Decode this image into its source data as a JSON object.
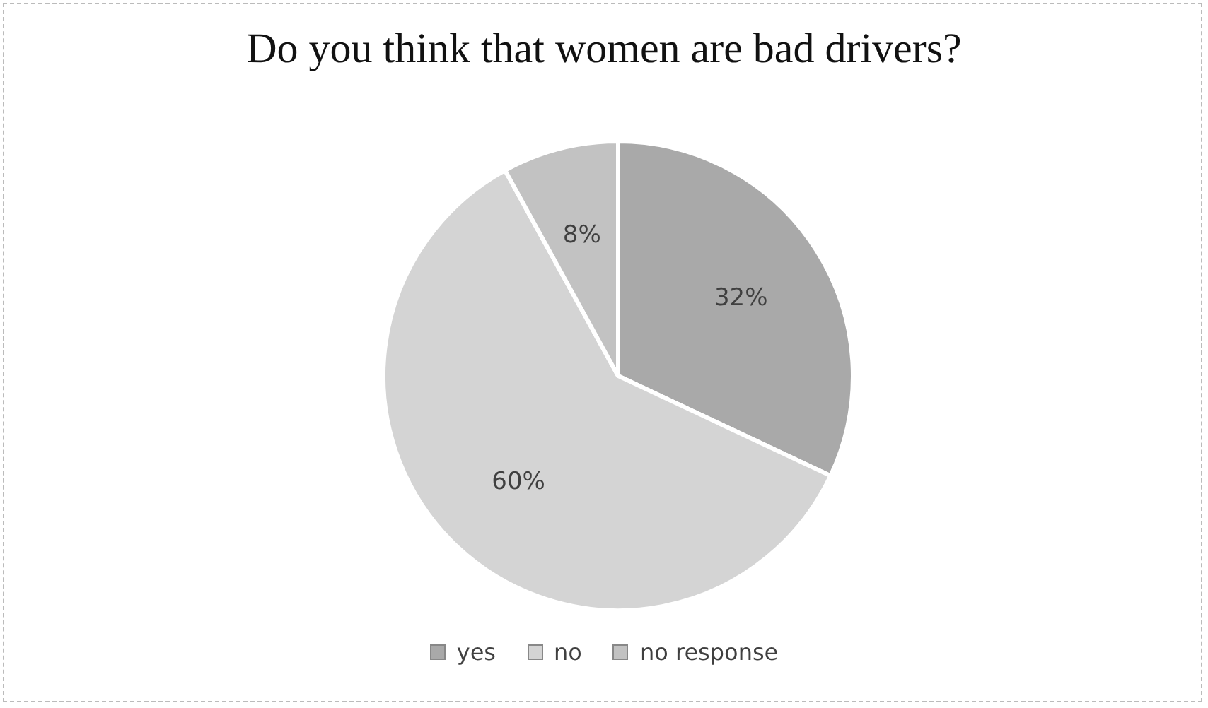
{
  "chart_data": {
    "type": "pie",
    "title": "Do you think that women are bad drivers?",
    "categories": [
      "yes",
      "no",
      "no response"
    ],
    "values": [
      32,
      60,
      8
    ],
    "value_labels": [
      "32%",
      "60%",
      "8%"
    ],
    "colors": [
      "#a9a9a9",
      "#d4d4d4",
      "#c2c2c2"
    ],
    "legend": "bottom"
  }
}
